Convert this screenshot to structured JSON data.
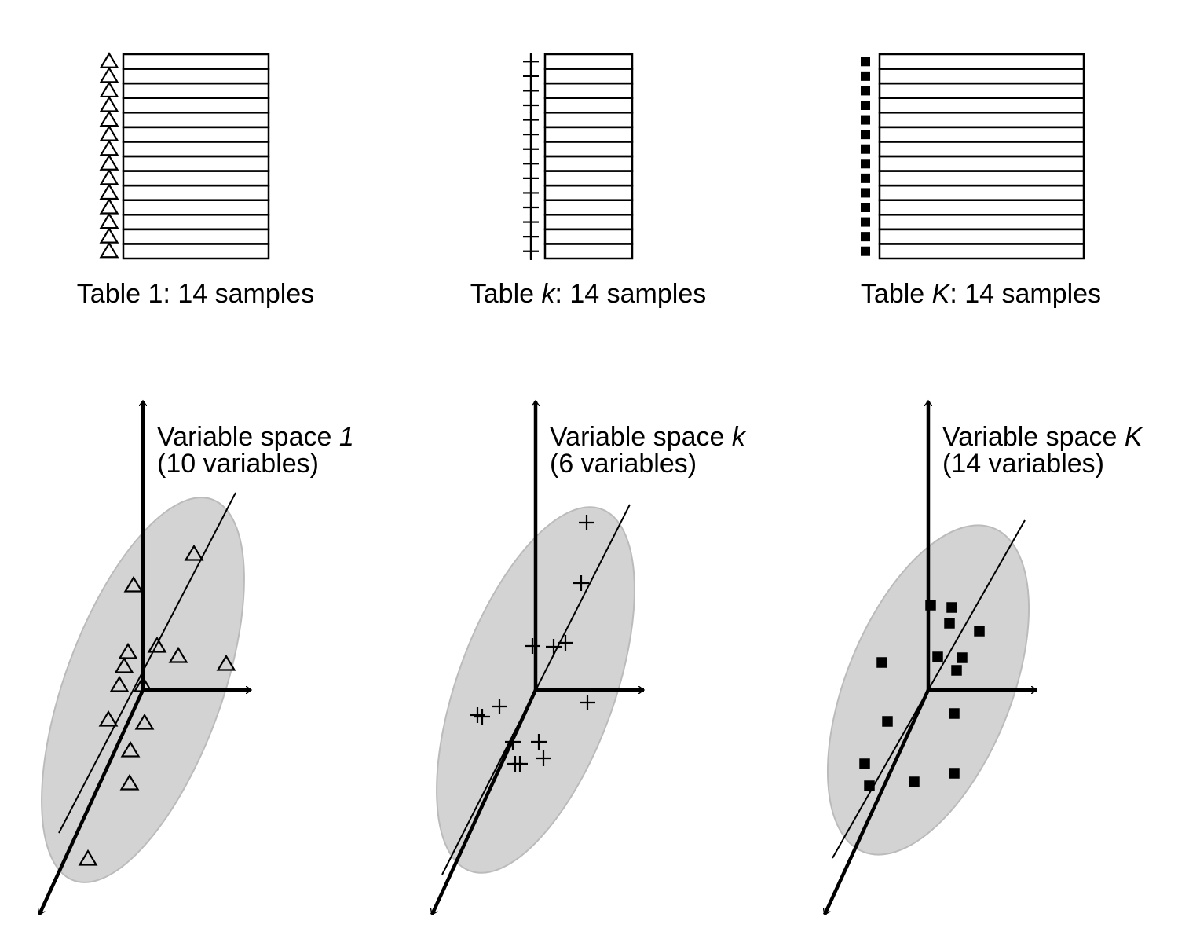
{
  "panels": [
    {
      "table_prefix": "Table ",
      "table_symbol": "1",
      "table_suffix": ": 14 samples",
      "symbol_italic": false,
      "space_prefix": "Variable space ",
      "space_symbol": "1",
      "variables": "(10 variables)"
    },
    {
      "table_prefix": "Table ",
      "table_symbol": "k",
      "table_suffix": ": 14 samples",
      "symbol_italic": true,
      "space_prefix": "Variable space ",
      "space_symbol": "k",
      "variables": "(6 variables)"
    },
    {
      "table_prefix": "Table ",
      "table_symbol": "K",
      "table_suffix": ": 14 samples",
      "symbol_italic": true,
      "space_prefix": "Variable space ",
      "space_symbol": "K",
      "variables": "(14 variables)"
    }
  ]
}
